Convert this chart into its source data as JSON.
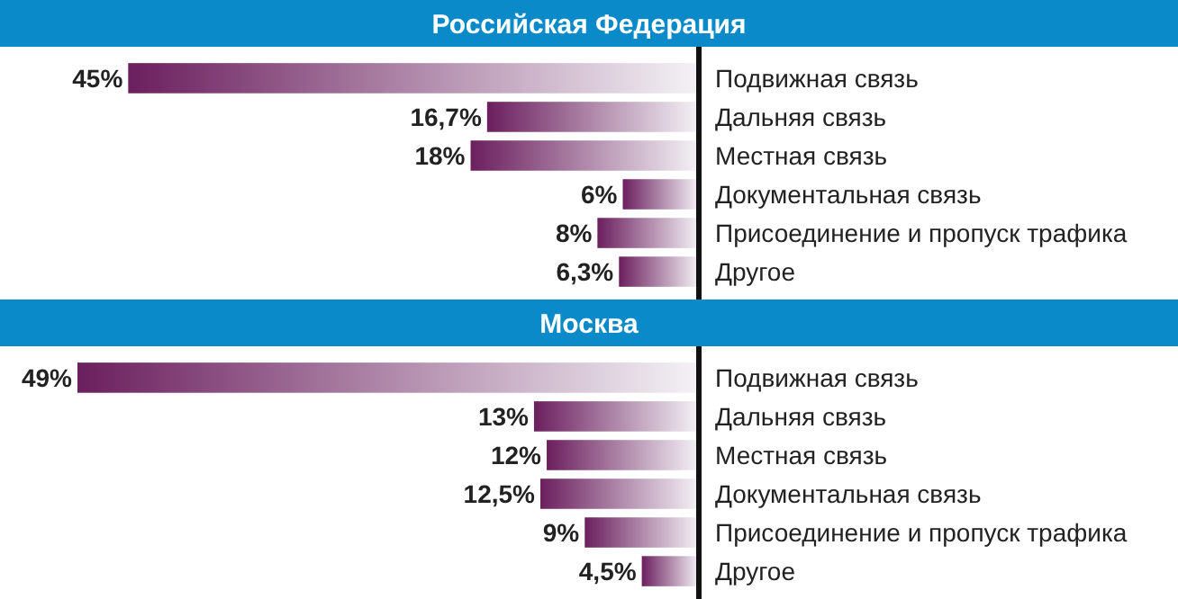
{
  "chart_data": [
    {
      "type": "bar",
      "orientation": "horizontal",
      "title": "Российская Федерация",
      "categories": [
        "Подвижная связь",
        "Дальняя связь",
        "Местная связь",
        "Документальная связь",
        "Присоединение и пропуск трафика",
        "Другое"
      ],
      "values": [
        45,
        16.7,
        18,
        6,
        8,
        6.3
      ],
      "value_labels": [
        "45%",
        "16,7%",
        "18%",
        "6%",
        "8%",
        "6,3%"
      ],
      "color": "#6b1f5e",
      "tick_labels": "y"
    },
    {
      "type": "bar",
      "orientation": "horizontal",
      "title": "Москва",
      "categories": [
        "Подвижная связь",
        "Дальняя связь",
        "Местная связь",
        "Документальная связь",
        "Присоединение и пропуск трафика",
        "Другое"
      ],
      "values": [
        49,
        13,
        12,
        12.5,
        9,
        4.5
      ],
      "value_labels": [
        "49%",
        "13%",
        "12%",
        "12,5%",
        "9%",
        "4,5%"
      ],
      "color": "#6b1f5e",
      "tick_labels": "y"
    }
  ]
}
